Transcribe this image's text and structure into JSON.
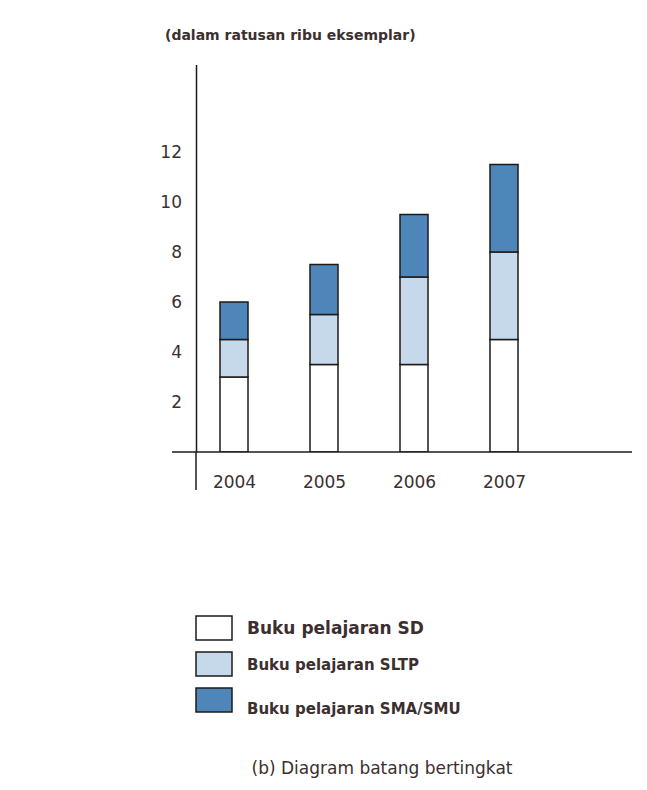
{
  "chart_data": {
    "type": "bar",
    "stacked": true,
    "title": "(b) Diagram batang bertingkat",
    "y_label": "(dalam ratusan ribu eksemplar)",
    "categories": [
      "2004",
      "2005",
      "2006",
      "2007"
    ],
    "series": [
      {
        "name": "Buku pelajaran SD",
        "color": "#ffffff",
        "values": [
          3,
          3.5,
          3.5,
          4.5
        ]
      },
      {
        "name": "Buku pelajaran SLTP",
        "color": "#c6d9eb",
        "values": [
          1.5,
          2,
          3.5,
          3.5
        ]
      },
      {
        "name": "Buku pelajaran SMA/SMU",
        "color": "#4f86b9",
        "values": [
          1.5,
          2,
          2.5,
          3.5
        ]
      }
    ],
    "ylim": [
      0,
      15.5
    ],
    "yticks": [
      2,
      4,
      6,
      8,
      10,
      12
    ],
    "grid": false,
    "legend": "bottom"
  }
}
